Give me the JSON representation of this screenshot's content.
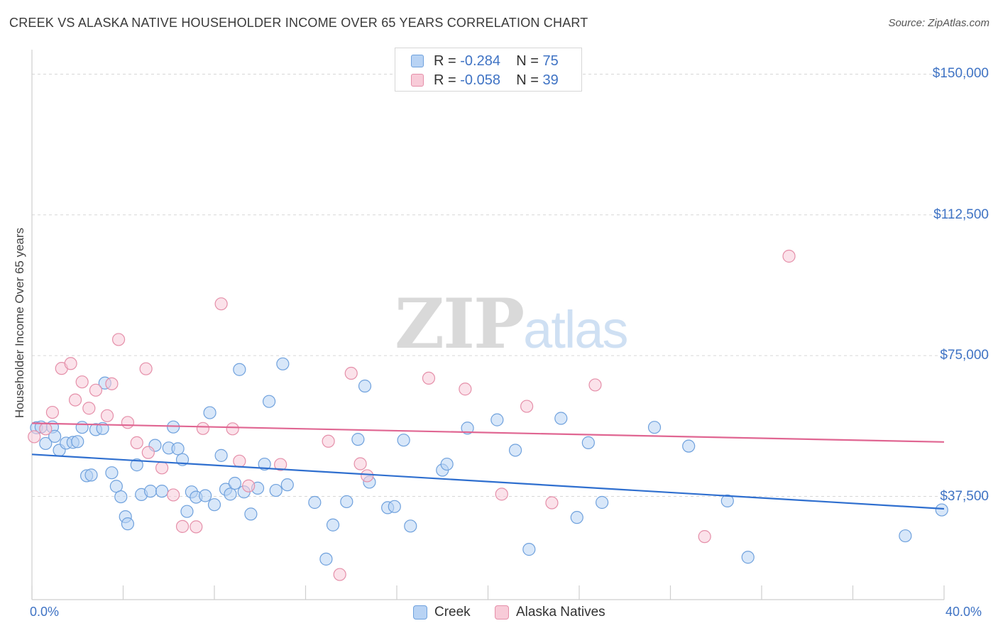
{
  "title": "CREEK VS ALASKA NATIVE HOUSEHOLDER INCOME OVER 65 YEARS CORRELATION CHART",
  "source": "Source: ZipAtlas.com",
  "watermark": {
    "zip": "ZIP",
    "atlas": "atlas"
  },
  "legend_top": {
    "rows": [
      {
        "r_label": "R =",
        "r_value": "-0.284",
        "n_label": "N =",
        "n_value": "75"
      },
      {
        "r_label": "R =",
        "r_value": "-0.058",
        "n_label": "N =",
        "n_value": "39"
      }
    ]
  },
  "colors": {
    "creek_fill": "#b8d3f4",
    "creek_stroke": "#6fa1dd",
    "creek_line": "#2f6fcf",
    "alaska_fill": "#f8cbd8",
    "alaska_stroke": "#e58fa9",
    "alaska_line": "#e06692",
    "grid": "#d7d7d7",
    "axis_text": "#3f73c4"
  },
  "chart_data": {
    "type": "scatter",
    "title": "CREEK VS ALASKA NATIVE HOUSEHOLDER INCOME OVER 65 YEARS CORRELATION CHART",
    "xlabel": "",
    "ylabel": "Householder Income Over 65 years",
    "xlim": [
      0,
      40
    ],
    "ylim": [
      10000,
      155000
    ],
    "x_ticks": [
      "0.0%",
      "40.0%"
    ],
    "y_ticks": [
      {
        "value": 37500,
        "label": "$37,500"
      },
      {
        "value": 75000,
        "label": "$75,000"
      },
      {
        "value": 112500,
        "label": "$112,500"
      },
      {
        "value": 150000,
        "label": "$150,000"
      }
    ],
    "grid": true,
    "legend_position": "bottom",
    "series": [
      {
        "name": "Creek",
        "r": -0.284,
        "n": 75,
        "trend": {
          "x": [
            0,
            40
          ],
          "y": [
            48700,
            34200
          ]
        },
        "points": [
          [
            0.2,
            55800
          ],
          [
            0.4,
            56000
          ],
          [
            0.6,
            51600
          ],
          [
            0.9,
            56000
          ],
          [
            1.0,
            53500
          ],
          [
            1.2,
            49800
          ],
          [
            1.5,
            51700
          ],
          [
            1.8,
            51900
          ],
          [
            2.0,
            52100
          ],
          [
            2.2,
            55900
          ],
          [
            2.4,
            43000
          ],
          [
            2.6,
            43200
          ],
          [
            2.8,
            55300
          ],
          [
            3.1,
            55600
          ],
          [
            3.2,
            67700
          ],
          [
            3.5,
            43800
          ],
          [
            3.7,
            40200
          ],
          [
            3.9,
            37400
          ],
          [
            4.1,
            32100
          ],
          [
            4.2,
            30200
          ],
          [
            4.6,
            45900
          ],
          [
            4.8,
            38000
          ],
          [
            5.2,
            38900
          ],
          [
            5.4,
            51100
          ],
          [
            5.7,
            38900
          ],
          [
            6.0,
            50400
          ],
          [
            6.2,
            56000
          ],
          [
            6.4,
            50200
          ],
          [
            6.6,
            47300
          ],
          [
            6.8,
            33500
          ],
          [
            7.0,
            38700
          ],
          [
            7.2,
            37300
          ],
          [
            7.6,
            37700
          ],
          [
            7.8,
            59800
          ],
          [
            8.0,
            35300
          ],
          [
            8.3,
            48400
          ],
          [
            8.5,
            39400
          ],
          [
            8.7,
            38100
          ],
          [
            8.9,
            41000
          ],
          [
            9.1,
            71300
          ],
          [
            9.3,
            38700
          ],
          [
            9.6,
            32800
          ],
          [
            9.9,
            39700
          ],
          [
            10.2,
            46100
          ],
          [
            10.4,
            62800
          ],
          [
            10.7,
            39100
          ],
          [
            11.0,
            72800
          ],
          [
            11.2,
            40600
          ],
          [
            12.4,
            35900
          ],
          [
            12.9,
            20800
          ],
          [
            13.2,
            29900
          ],
          [
            13.8,
            36100
          ],
          [
            14.3,
            52700
          ],
          [
            14.6,
            66900
          ],
          [
            14.8,
            41300
          ],
          [
            15.6,
            34500
          ],
          [
            15.9,
            34800
          ],
          [
            16.3,
            52500
          ],
          [
            16.6,
            29600
          ],
          [
            18.0,
            44500
          ],
          [
            18.2,
            46100
          ],
          [
            19.1,
            55700
          ],
          [
            20.4,
            57900
          ],
          [
            21.2,
            49800
          ],
          [
            21.8,
            23400
          ],
          [
            23.2,
            58300
          ],
          [
            23.9,
            31900
          ],
          [
            24.4,
            51800
          ],
          [
            25.0,
            35900
          ],
          [
            27.3,
            55900
          ],
          [
            28.8,
            50900
          ],
          [
            30.5,
            36300
          ],
          [
            31.4,
            21300
          ],
          [
            38.3,
            27000
          ],
          [
            39.9,
            33900
          ]
        ]
      },
      {
        "name": "Alaska Natives",
        "r": -0.058,
        "n": 39,
        "trend": {
          "x": [
            0,
            40
          ],
          "y": [
            57000,
            52000
          ]
        },
        "points": [
          [
            0.1,
            53400
          ],
          [
            0.6,
            55500
          ],
          [
            0.9,
            59900
          ],
          [
            1.3,
            71600
          ],
          [
            1.7,
            72900
          ],
          [
            1.9,
            63200
          ],
          [
            2.2,
            68000
          ],
          [
            2.5,
            61000
          ],
          [
            2.8,
            65800
          ],
          [
            3.3,
            59000
          ],
          [
            3.5,
            67500
          ],
          [
            3.8,
            79300
          ],
          [
            4.2,
            57200
          ],
          [
            4.6,
            51800
          ],
          [
            5.0,
            71500
          ],
          [
            5.1,
            49200
          ],
          [
            5.7,
            45100
          ],
          [
            6.2,
            37900
          ],
          [
            6.6,
            29500
          ],
          [
            7.2,
            29400
          ],
          [
            7.5,
            55600
          ],
          [
            8.3,
            88800
          ],
          [
            8.8,
            55500
          ],
          [
            9.1,
            46900
          ],
          [
            9.5,
            40300
          ],
          [
            10.9,
            46000
          ],
          [
            13.0,
            52200
          ],
          [
            13.5,
            16700
          ],
          [
            14.0,
            70300
          ],
          [
            14.4,
            46200
          ],
          [
            14.7,
            43000
          ],
          [
            17.4,
            69000
          ],
          [
            19.0,
            66100
          ],
          [
            20.6,
            38100
          ],
          [
            21.7,
            61500
          ],
          [
            22.8,
            35800
          ],
          [
            24.7,
            67200
          ],
          [
            29.5,
            26800
          ],
          [
            33.2,
            101500
          ]
        ]
      }
    ]
  }
}
